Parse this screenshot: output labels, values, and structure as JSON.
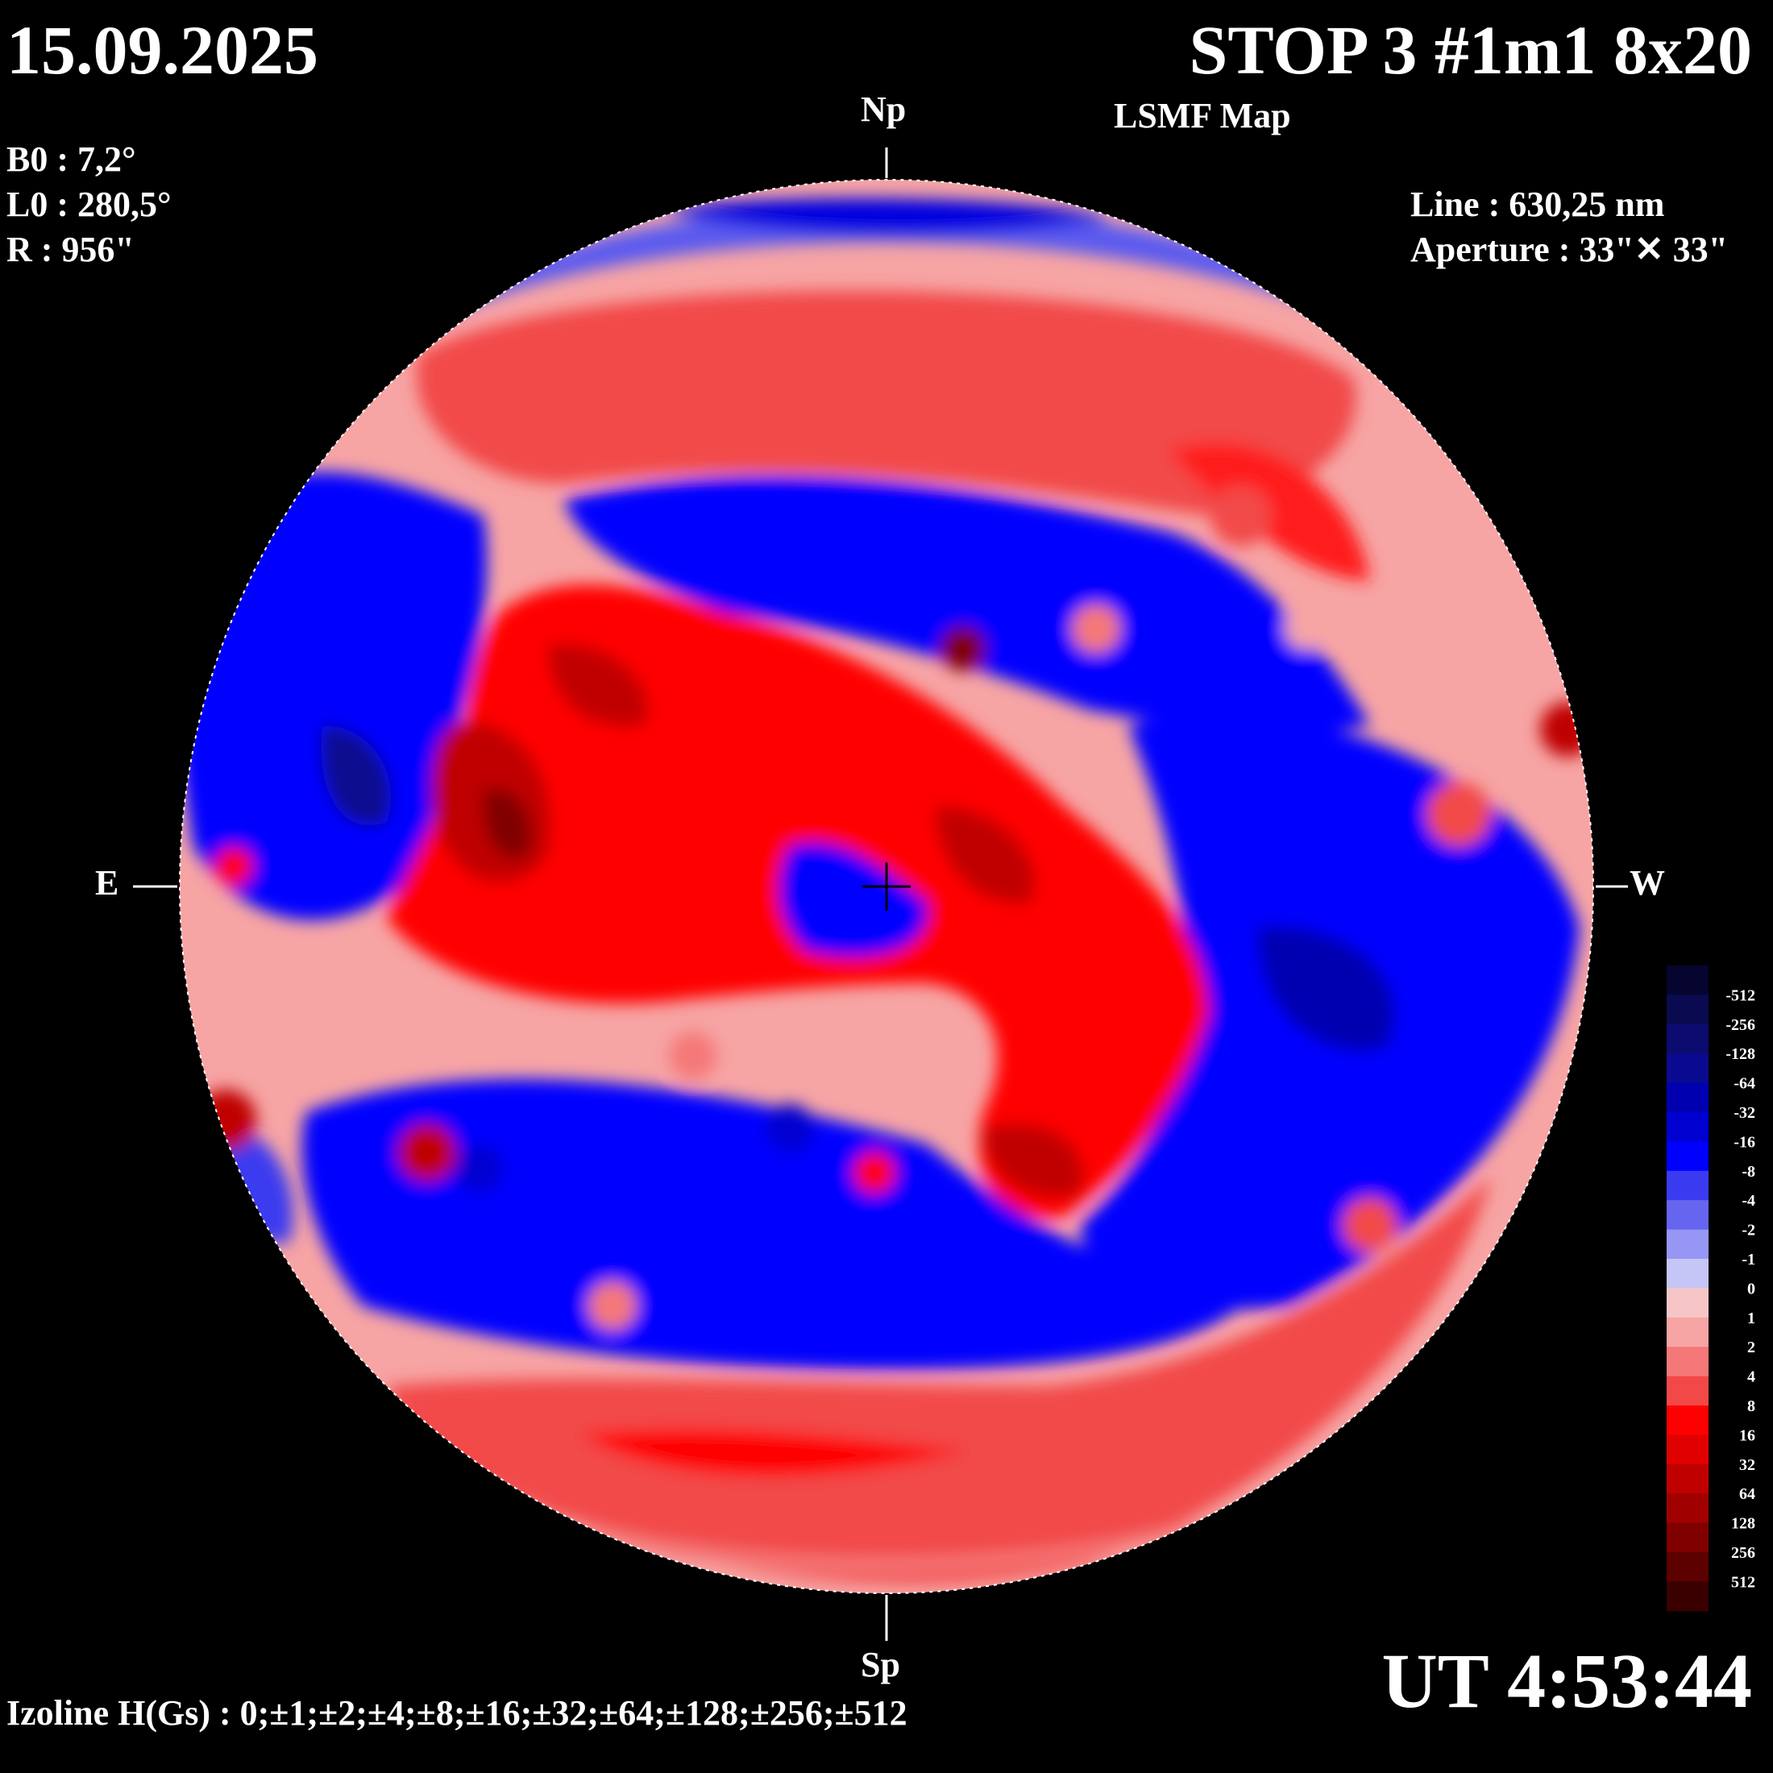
{
  "header": {
    "date": "15.09.2025",
    "title": "STOP 3 #1m1 8x20",
    "subtitle": "LSMF  Map"
  },
  "parameters": {
    "b0": "B0 : 7,2°",
    "l0": "L0 : 280,5°",
    "r": "R  : 956\""
  },
  "instrument": {
    "line": "Line :  630,25 nm",
    "aperture": "Aperture : 33\"✕ 33\""
  },
  "directions": {
    "north": "Np",
    "south": "Sp",
    "east": "E",
    "west": "W"
  },
  "time": "UT 4:53:44",
  "izoline_caption": "Izoline H(Gs) : 0;±1;±2;±4;±8;±16;±32;±64;±128;±256;±512",
  "colors": {
    "background": "#000000",
    "negative_field": "#0000ff",
    "positive_field": "#ff0000",
    "zero_contour": "#ffffff"
  },
  "legend": {
    "levels": [
      "-512",
      "-256",
      "-128",
      "-64",
      "-32",
      "-16",
      "-8",
      "-4",
      "-2",
      "-1",
      "0",
      "1",
      "2",
      "4",
      "8",
      "16",
      "32",
      "64",
      "128",
      "256",
      "512"
    ],
    "colors": [
      "#050530",
      "#0a0a50",
      "#0c0c70",
      "#0a0a90",
      "#0000b0",
      "#0000d0",
      "#0000ff",
      "#3a3af0",
      "#6565f0",
      "#9696f4",
      "#c6c6f6",
      "#f6c6c6",
      "#f7a4a4",
      "#f57878",
      "#f24848",
      "#ff0000",
      "#e00000",
      "#c00000",
      "#a00000",
      "#800000",
      "#5c0000",
      "#3a0000"
    ]
  }
}
